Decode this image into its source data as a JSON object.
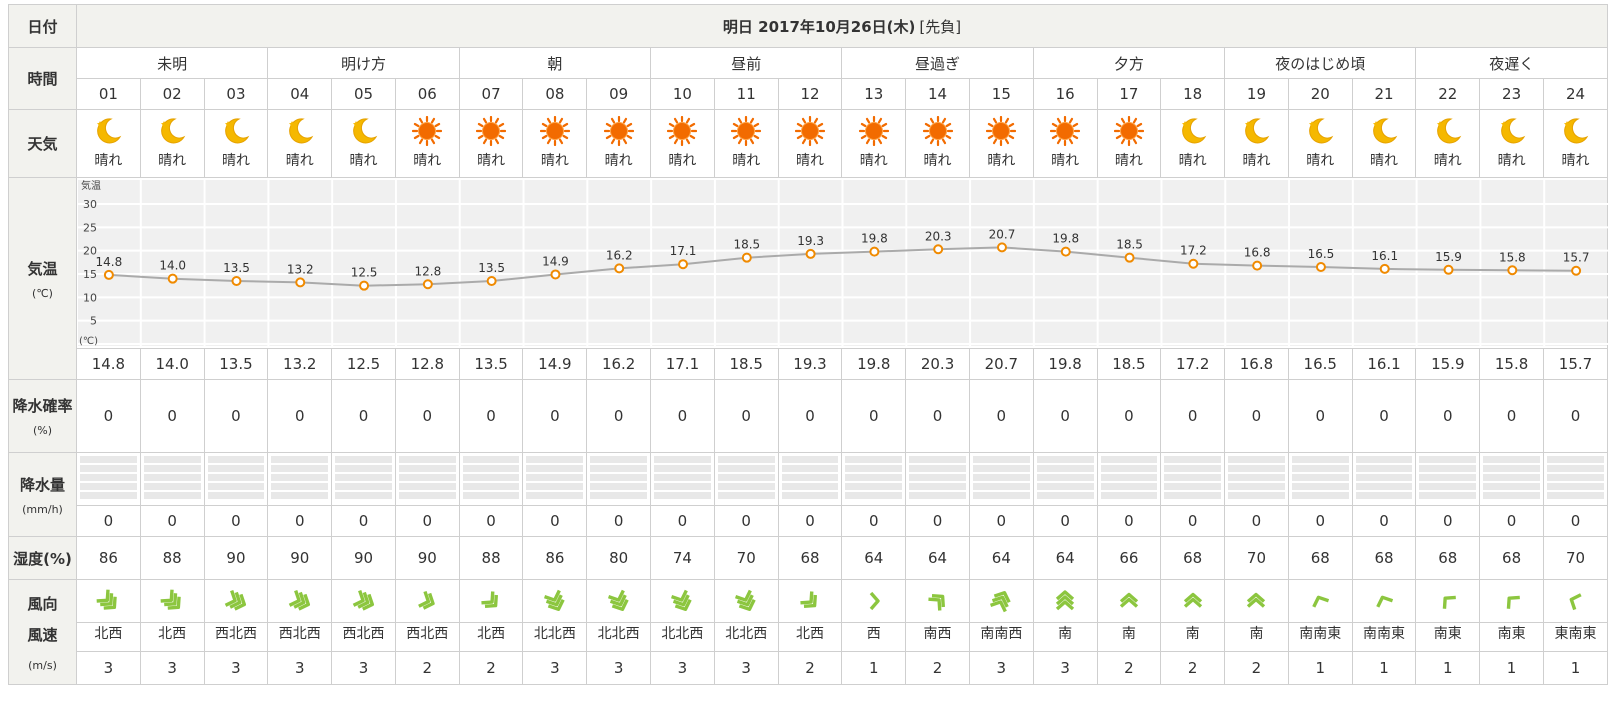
{
  "labels": {
    "date": "日付",
    "time": "時間",
    "weather": "天気",
    "temp": "気温",
    "temp_unit": "(℃)",
    "precip_prob": "降水確率",
    "precip_prob_unit": "(%)",
    "precip_amt": "降水量",
    "precip_amt_unit": "(mm/h)",
    "humidity": "湿度(%)",
    "wind_dir": "風向",
    "wind_speed": "風速",
    "wind_unit": "(m/s)"
  },
  "header": {
    "date": "明日 2017年10月26日(木)",
    "note": "[先負]"
  },
  "periods": [
    "未明",
    "明け方",
    "朝",
    "昼前",
    "昼過ぎ",
    "夕方",
    "夜のはじめ頃",
    "夜遅く"
  ],
  "hours": [
    "01",
    "02",
    "03",
    "04",
    "05",
    "06",
    "07",
    "08",
    "09",
    "10",
    "11",
    "12",
    "13",
    "14",
    "15",
    "16",
    "17",
    "18",
    "19",
    "20",
    "21",
    "22",
    "23",
    "24"
  ],
  "weather": [
    {
      "icon": "moon-icon",
      "text": "晴れ"
    },
    {
      "icon": "moon-icon",
      "text": "晴れ"
    },
    {
      "icon": "moon-icon",
      "text": "晴れ"
    },
    {
      "icon": "moon-icon",
      "text": "晴れ"
    },
    {
      "icon": "moon-icon",
      "text": "晴れ"
    },
    {
      "icon": "sun-icon",
      "text": "晴れ"
    },
    {
      "icon": "sun-icon",
      "text": "晴れ"
    },
    {
      "icon": "sun-icon",
      "text": "晴れ"
    },
    {
      "icon": "sun-icon",
      "text": "晴れ"
    },
    {
      "icon": "sun-icon",
      "text": "晴れ"
    },
    {
      "icon": "sun-icon",
      "text": "晴れ"
    },
    {
      "icon": "sun-icon",
      "text": "晴れ"
    },
    {
      "icon": "sun-icon",
      "text": "晴れ"
    },
    {
      "icon": "sun-icon",
      "text": "晴れ"
    },
    {
      "icon": "sun-icon",
      "text": "晴れ"
    },
    {
      "icon": "sun-icon",
      "text": "晴れ"
    },
    {
      "icon": "sun-icon",
      "text": "晴れ"
    },
    {
      "icon": "moon-icon",
      "text": "晴れ"
    },
    {
      "icon": "moon-icon",
      "text": "晴れ"
    },
    {
      "icon": "moon-icon",
      "text": "晴れ"
    },
    {
      "icon": "moon-icon",
      "text": "晴れ"
    },
    {
      "icon": "moon-icon",
      "text": "晴れ"
    },
    {
      "icon": "moon-icon",
      "text": "晴れ"
    },
    {
      "icon": "moon-icon",
      "text": "晴れ"
    }
  ],
  "temps": [
    "14.8",
    "14.0",
    "13.5",
    "13.2",
    "12.5",
    "12.8",
    "13.5",
    "14.9",
    "16.2",
    "17.1",
    "18.5",
    "19.3",
    "19.8",
    "20.3",
    "20.7",
    "19.8",
    "18.5",
    "17.2",
    "16.8",
    "16.5",
    "16.1",
    "15.9",
    "15.8",
    "15.7"
  ],
  "chart_data": {
    "type": "line",
    "x": [
      "01",
      "02",
      "03",
      "04",
      "05",
      "06",
      "07",
      "08",
      "09",
      "10",
      "11",
      "12",
      "13",
      "14",
      "15",
      "16",
      "17",
      "18",
      "19",
      "20",
      "21",
      "22",
      "23",
      "24"
    ],
    "series": [
      {
        "values": [
          14.8,
          14.0,
          13.5,
          13.2,
          12.5,
          12.8,
          13.5,
          14.9,
          16.2,
          17.1,
          18.5,
          19.3,
          19.8,
          20.3,
          20.7,
          19.8,
          18.5,
          17.2,
          16.8,
          16.5,
          16.1,
          15.9,
          15.8,
          15.7
        ]
      }
    ],
    "axis_title": "気温",
    "axis_unit": "(℃)",
    "yticks": [
      "30",
      "25",
      "20",
      "15",
      "10",
      "5"
    ],
    "ylim": [
      0,
      33
    ],
    "colors": {
      "line": "#aaaaaa",
      "point": "#f08a00",
      "band_a": "#f0f0f0",
      "band_b": "#e6e6e6"
    }
  },
  "precip_prob": [
    "0",
    "0",
    "0",
    "0",
    "0",
    "0",
    "0",
    "0",
    "0",
    "0",
    "0",
    "0",
    "0",
    "0",
    "0",
    "0",
    "0",
    "0",
    "0",
    "0",
    "0",
    "0",
    "0",
    "0"
  ],
  "precip_amt": [
    "0",
    "0",
    "0",
    "0",
    "0",
    "0",
    "0",
    "0",
    "0",
    "0",
    "0",
    "0",
    "0",
    "0",
    "0",
    "0",
    "0",
    "0",
    "0",
    "0",
    "0",
    "0",
    "0",
    "0"
  ],
  "humidity": [
    "86",
    "88",
    "90",
    "90",
    "90",
    "90",
    "88",
    "86",
    "80",
    "74",
    "70",
    "68",
    "64",
    "64",
    "64",
    "64",
    "66",
    "68",
    "70",
    "68",
    "68",
    "68",
    "68",
    "70"
  ],
  "wind_dirs": [
    "北西",
    "北西",
    "西北西",
    "西北西",
    "西北西",
    "西北西",
    "北西",
    "北北西",
    "北北西",
    "北北西",
    "北北西",
    "北西",
    "西",
    "南西",
    "南南西",
    "南",
    "南",
    "南",
    "南",
    "南南東",
    "南南東",
    "南東",
    "南東",
    "東南東"
  ],
  "wind_speeds": [
    "3",
    "3",
    "3",
    "3",
    "3",
    "2",
    "2",
    "3",
    "3",
    "3",
    "3",
    "2",
    "1",
    "2",
    "3",
    "3",
    "2",
    "2",
    "2",
    "1",
    "1",
    "1",
    "1",
    "1"
  ],
  "colors": {
    "label_bg": "#f2f2ee",
    "border": "#cfcfcf",
    "wind_icon": "#8cc63f",
    "sun": "#f26b00",
    "moon": "#f5b800"
  }
}
